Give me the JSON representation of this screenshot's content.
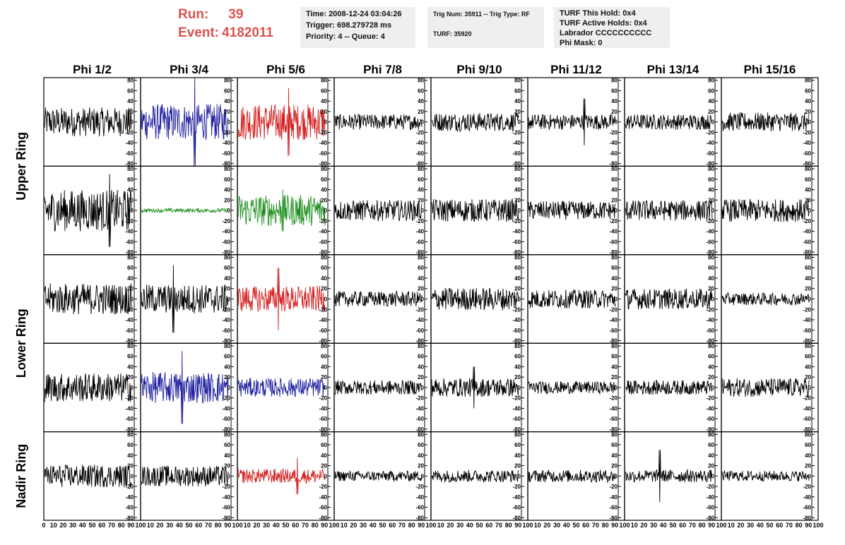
{
  "header": {
    "run_label": "Run:",
    "run_value": "39",
    "event_label": "Event:",
    "event_value": "4182011",
    "time": "Time: 2008-12-24 03:04:26",
    "trigger": "Trigger: 698.279728 ms",
    "priority": "Priority: 4 -- Queue: 4",
    "trig_num": "Trig Num: 35911 -- Trig Type: RF",
    "turf": "TURF: 35920",
    "turf_hold": "TURF This Hold: 0x4",
    "turf_active": "TURF Active Holds: 0x4",
    "labrador": "Labrador CCCCCCCCCC",
    "phi_mask": "Phi Mask: 0"
  },
  "colors": {
    "black": "#000000",
    "blue": "#1f1f9f",
    "red": "#d42020",
    "green": "#1e8f1e",
    "accent": "#d9534f"
  },
  "chart_data": {
    "type": "line",
    "columns": [
      "Phi 1/2",
      "Phi 3/4",
      "Phi 5/6",
      "Phi 7/8",
      "Phi 9/10",
      "Phi 11/12",
      "Phi 13/14",
      "Phi 15/16"
    ],
    "row_labels": [
      {
        "label": "Upper Ring",
        "rows": [
          0,
          1
        ]
      },
      {
        "label": "Lower Ring",
        "rows": [
          2,
          3
        ]
      },
      {
        "label": "Nadir Ring",
        "rows": [
          4
        ]
      }
    ],
    "xlim": [
      0,
      100
    ],
    "ylim": [
      -85,
      85
    ],
    "x_ticks": [
      "0",
      "10",
      "20",
      "30",
      "40",
      "50",
      "60",
      "70",
      "80",
      "90",
      "100"
    ],
    "y_ticks": [
      -80,
      -60,
      -40,
      -20,
      0,
      20,
      40,
      60,
      80
    ],
    "panel_color": [
      [
        "black",
        "blue",
        "red",
        "black",
        "black",
        "black",
        "black",
        "black"
      ],
      [
        "black",
        "green",
        "green",
        "black",
        "black",
        "black",
        "black",
        "black"
      ],
      [
        "black",
        "black",
        "red",
        "black",
        "black",
        "black",
        "black",
        "black"
      ],
      [
        "black",
        "blue",
        "blue",
        "black",
        "black",
        "black",
        "black",
        "black"
      ],
      [
        "black",
        "black",
        "red",
        "black",
        "black",
        "black",
        "black",
        "black"
      ]
    ],
    "panel_amplitude": [
      [
        28,
        35,
        35,
        15,
        18,
        15,
        15,
        18
      ],
      [
        40,
        4,
        30,
        20,
        22,
        18,
        20,
        22
      ],
      [
        30,
        28,
        25,
        15,
        22,
        18,
        20,
        12
      ],
      [
        28,
        30,
        18,
        14,
        18,
        12,
        14,
        18
      ],
      [
        22,
        20,
        14,
        10,
        12,
        12,
        12,
        10
      ]
    ],
    "panel_spike": [
      [
        0,
        85,
        65,
        0,
        0,
        45,
        0,
        0
      ],
      [
        70,
        0,
        40,
        0,
        0,
        0,
        0,
        0
      ],
      [
        0,
        65,
        60,
        0,
        0,
        0,
        0,
        0
      ],
      [
        0,
        70,
        0,
        0,
        40,
        0,
        0,
        0
      ],
      [
        0,
        0,
        35,
        0,
        0,
        0,
        50,
        0
      ]
    ]
  }
}
